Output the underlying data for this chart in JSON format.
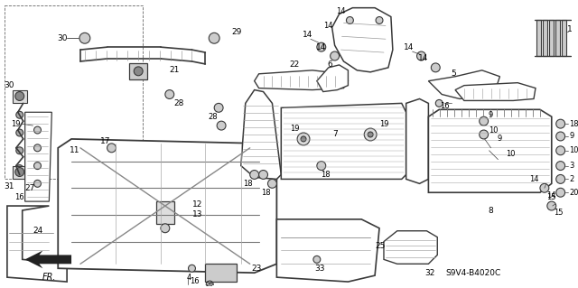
{
  "bg_color": "#ffffff",
  "line_color": "#3a3a3a",
  "text_color": "#000000",
  "watermark": "S9V4-B4020C",
  "figsize": [
    6.4,
    3.19
  ],
  "dpi": 100
}
